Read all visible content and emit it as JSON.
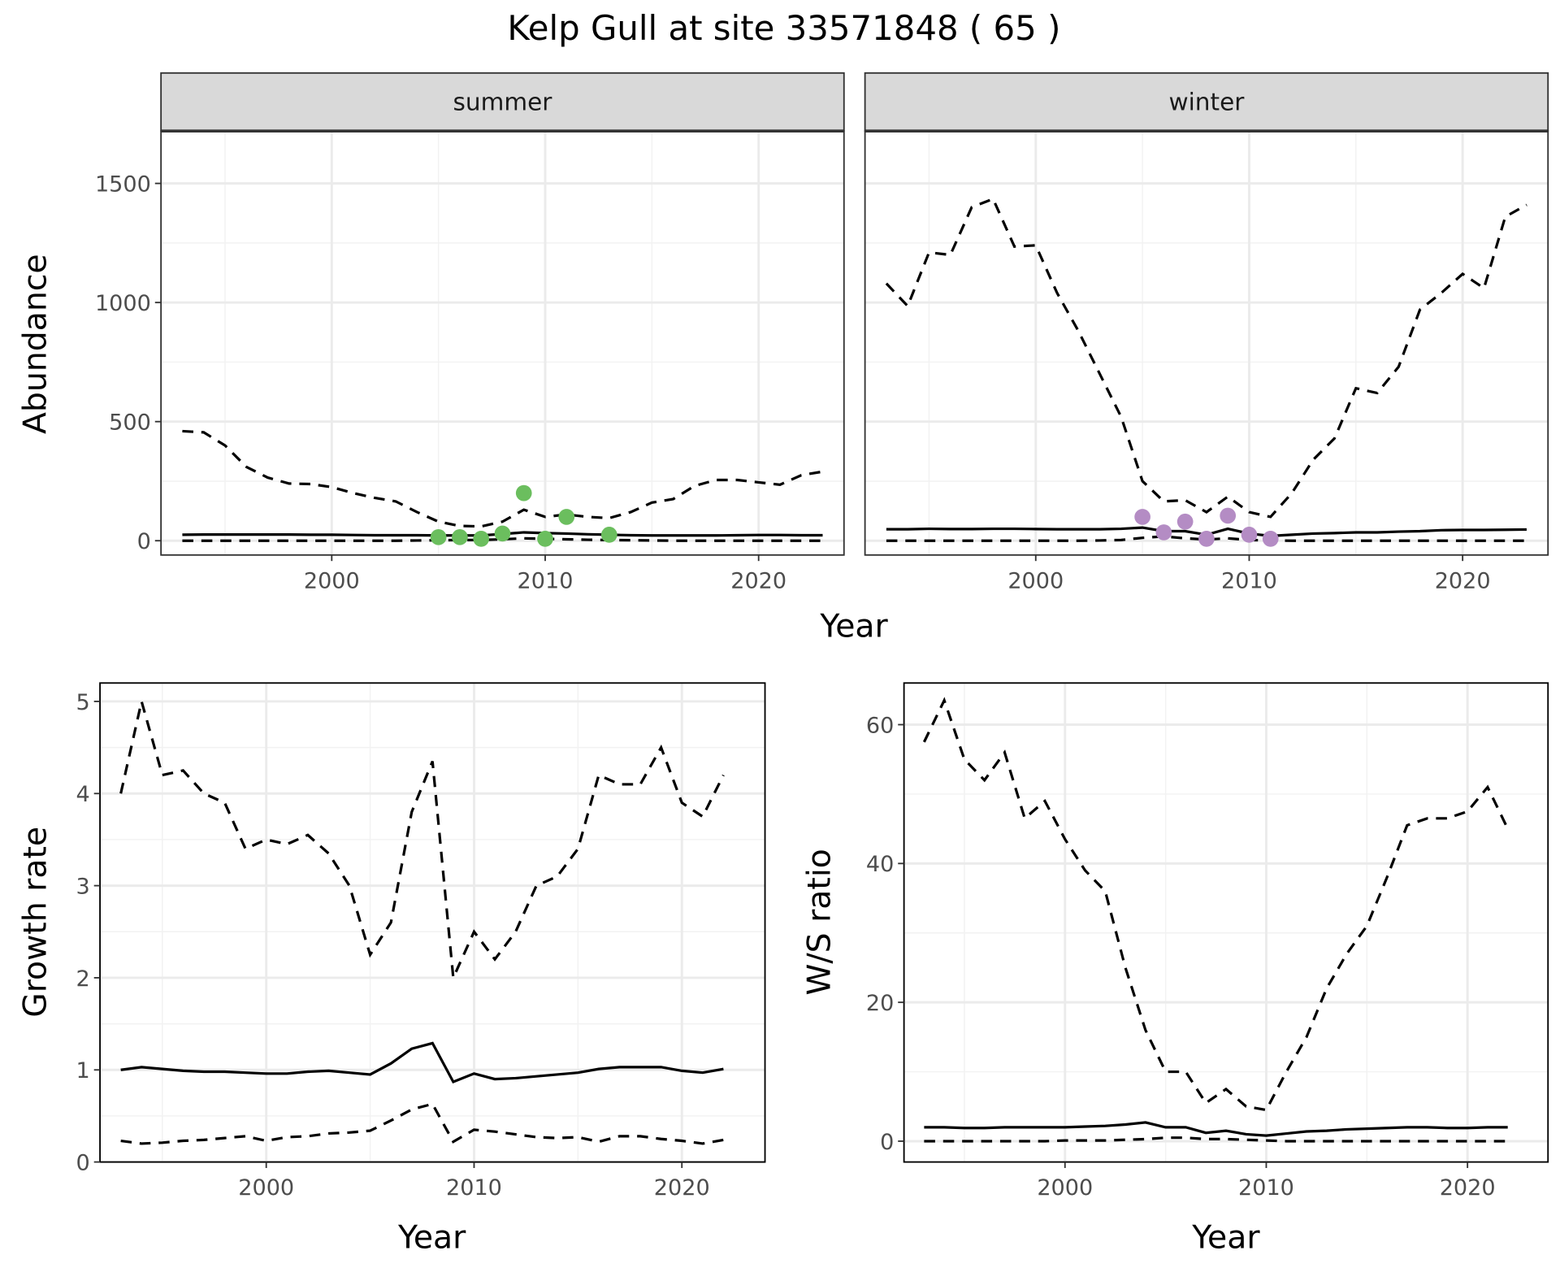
{
  "title": "Kelp Gull at site 33571848 ( 65 )",
  "colors": {
    "summer_points": "#6BBE5E",
    "winter_points": "#B48CC4",
    "lines": "#000000",
    "strip": "#D9D9D9"
  },
  "chart_data": [
    {
      "type": "line",
      "facet": "summer",
      "xlabel": "Year",
      "ylabel": "Abundance",
      "xlim": [
        1992,
        2024
      ],
      "ylim": [
        -60,
        1720
      ],
      "xticks": [
        "2000",
        "2010",
        "2020"
      ],
      "yticks": [
        "0",
        "500",
        "1000",
        "1500"
      ],
      "grid": true,
      "x": [
        1993,
        1994,
        1995,
        1996,
        1997,
        1998,
        1999,
        2000,
        2001,
        2002,
        2003,
        2004,
        2005,
        2006,
        2007,
        2008,
        2009,
        2010,
        2011,
        2012,
        2013,
        2014,
        2015,
        2016,
        2017,
        2018,
        2019,
        2020,
        2021,
        2022,
        2023
      ],
      "series": [
        {
          "style": "dashed",
          "values": [
            460,
            455,
            400,
            310,
            265,
            240,
            238,
            225,
            200,
            180,
            165,
            120,
            80,
            62,
            60,
            80,
            130,
            100,
            110,
            100,
            95,
            120,
            160,
            175,
            230,
            255,
            255,
            245,
            235,
            275,
            290
          ]
        },
        {
          "style": "solid",
          "values": [
            25,
            26,
            26,
            26,
            26,
            26,
            25,
            25,
            24,
            23,
            23,
            23,
            22,
            22,
            22,
            28,
            35,
            32,
            30,
            27,
            25,
            23,
            22,
            22,
            22,
            22,
            23,
            24,
            24,
            23,
            23
          ]
        },
        {
          "style": "dashed",
          "values": [
            0,
            0,
            0,
            0,
            0,
            0,
            0,
            0,
            0,
            0,
            0,
            1,
            2,
            3,
            3,
            6,
            10,
            8,
            6,
            4,
            3,
            2,
            1,
            0,
            0,
            0,
            0,
            0,
            0,
            0,
            0
          ]
        }
      ],
      "points": {
        "x": [
          2005,
          2006,
          2007,
          2008,
          2009,
          2010,
          2011,
          2013
        ],
        "y": [
          15,
          15,
          8,
          30,
          200,
          8,
          100,
          25
        ]
      }
    },
    {
      "type": "line",
      "facet": "winter",
      "xlabel": "Year",
      "ylabel": "Abundance",
      "xlim": [
        1992,
        2024
      ],
      "ylim": [
        -60,
        1720
      ],
      "xticks": [
        "2000",
        "2010",
        "2020"
      ],
      "yticks": [
        "0",
        "500",
        "1000",
        "1500"
      ],
      "grid": true,
      "x": [
        1993,
        1994,
        1995,
        1996,
        1997,
        1998,
        1999,
        2000,
        2001,
        2002,
        2003,
        2004,
        2005,
        2006,
        2007,
        2008,
        2009,
        2010,
        2011,
        2012,
        2013,
        2014,
        2015,
        2016,
        2017,
        2018,
        2019,
        2020,
        2021,
        2022,
        2023
      ],
      "series": [
        {
          "style": "dashed",
          "values": [
            1080,
            985,
            1210,
            1200,
            1400,
            1435,
            1235,
            1240,
            1040,
            880,
            700,
            520,
            250,
            165,
            170,
            120,
            185,
            120,
            100,
            200,
            340,
            430,
            640,
            620,
            730,
            970,
            1040,
            1120,
            1060,
            1360,
            1410
          ]
        },
        {
          "style": "solid",
          "values": [
            48,
            48,
            50,
            49,
            49,
            50,
            50,
            49,
            48,
            48,
            48,
            50,
            55,
            40,
            40,
            25,
            50,
            30,
            20,
            25,
            30,
            32,
            35,
            35,
            38,
            40,
            44,
            45,
            45,
            46,
            47
          ]
        },
        {
          "style": "dashed",
          "values": [
            0,
            0,
            0,
            0,
            0,
            0,
            0,
            0,
            0,
            0,
            1,
            3,
            12,
            18,
            10,
            5,
            10,
            3,
            1,
            0,
            0,
            0,
            0,
            0,
            0,
            0,
            0,
            0,
            0,
            0,
            0
          ]
        }
      ],
      "points": {
        "x": [
          2005,
          2006,
          2007,
          2008,
          2009,
          2010,
          2011
        ],
        "y": [
          100,
          35,
          80,
          8,
          105,
          25,
          8
        ]
      }
    },
    {
      "type": "line",
      "xlabel": "Year",
      "ylabel": "Growth rate",
      "xlim": [
        1992,
        2024
      ],
      "ylim": [
        0,
        5.2
      ],
      "xticks": [
        "2000",
        "2010",
        "2020"
      ],
      "yticks": [
        "0",
        "1",
        "2",
        "3",
        "4",
        "5"
      ],
      "grid": true,
      "x": [
        1993,
        1994,
        1995,
        1996,
        1997,
        1998,
        1999,
        2000,
        2001,
        2002,
        2003,
        2004,
        2005,
        2006,
        2007,
        2008,
        2009,
        2010,
        2011,
        2012,
        2013,
        2014,
        2015,
        2016,
        2017,
        2018,
        2019,
        2020,
        2021,
        2022
      ],
      "series": [
        {
          "style": "dashed",
          "values": [
            4.0,
            5.0,
            4.2,
            4.25,
            4.0,
            3.9,
            3.4,
            3.5,
            3.45,
            3.55,
            3.35,
            3.0,
            2.25,
            2.6,
            3.8,
            4.35,
            2.0,
            2.5,
            2.2,
            2.5,
            3.0,
            3.1,
            3.4,
            4.2,
            4.1,
            4.1,
            4.5,
            3.9,
            3.75,
            4.2
          ]
        },
        {
          "style": "solid",
          "values": [
            1.0,
            1.03,
            1.01,
            0.99,
            0.98,
            0.98,
            0.97,
            0.96,
            0.96,
            0.98,
            0.99,
            0.97,
            0.95,
            1.07,
            1.23,
            1.29,
            0.87,
            0.96,
            0.9,
            0.91,
            0.93,
            0.95,
            0.97,
            1.01,
            1.03,
            1.03,
            1.03,
            0.99,
            0.97,
            1.01
          ]
        },
        {
          "style": "dashed",
          "values": [
            0.23,
            0.2,
            0.21,
            0.23,
            0.24,
            0.26,
            0.28,
            0.23,
            0.27,
            0.28,
            0.31,
            0.32,
            0.34,
            0.45,
            0.57,
            0.63,
            0.22,
            0.35,
            0.33,
            0.3,
            0.27,
            0.26,
            0.27,
            0.22,
            0.28,
            0.28,
            0.25,
            0.23,
            0.2,
            0.24
          ]
        }
      ]
    },
    {
      "type": "line",
      "xlabel": "Year",
      "ylabel": "W/S ratio",
      "xlim": [
        1992,
        2024
      ],
      "ylim": [
        -3,
        66
      ],
      "xticks": [
        "2000",
        "2010",
        "2020"
      ],
      "yticks": [
        "0",
        "20",
        "40",
        "60"
      ],
      "grid": true,
      "x": [
        1993,
        1994,
        1995,
        1996,
        1997,
        1998,
        1999,
        2000,
        2001,
        2002,
        2003,
        2004,
        2005,
        2006,
        2007,
        2008,
        2009,
        2010,
        2011,
        2012,
        2013,
        2014,
        2015,
        2016,
        2017,
        2018,
        2019,
        2020,
        2021,
        2022
      ],
      "series": [
        {
          "style": "dashed",
          "values": [
            57.5,
            63.5,
            55,
            52,
            56,
            46.5,
            49,
            43.5,
            39,
            36,
            25,
            16,
            10,
            10,
            5.5,
            7.5,
            5,
            4.5,
            10,
            15,
            22,
            27,
            31,
            38,
            45.5,
            46.5,
            46.5,
            47.5,
            51,
            45
          ]
        },
        {
          "style": "solid",
          "values": [
            2,
            2,
            1.9,
            1.9,
            2,
            2,
            2,
            2,
            2.1,
            2.2,
            2.4,
            2.7,
            2,
            2,
            1.2,
            1.5,
            1,
            0.8,
            1.1,
            1.4,
            1.5,
            1.7,
            1.8,
            1.9,
            2,
            2,
            1.9,
            1.9,
            2,
            2
          ]
        },
        {
          "style": "dashed",
          "values": [
            0,
            0,
            0,
            0,
            0,
            0,
            0,
            0.1,
            0.1,
            0.1,
            0.2,
            0.3,
            0.5,
            0.5,
            0.3,
            0.3,
            0.2,
            0.1,
            0,
            0,
            0,
            0,
            0,
            0,
            0,
            0,
            0,
            0,
            0,
            0
          ]
        }
      ]
    }
  ]
}
